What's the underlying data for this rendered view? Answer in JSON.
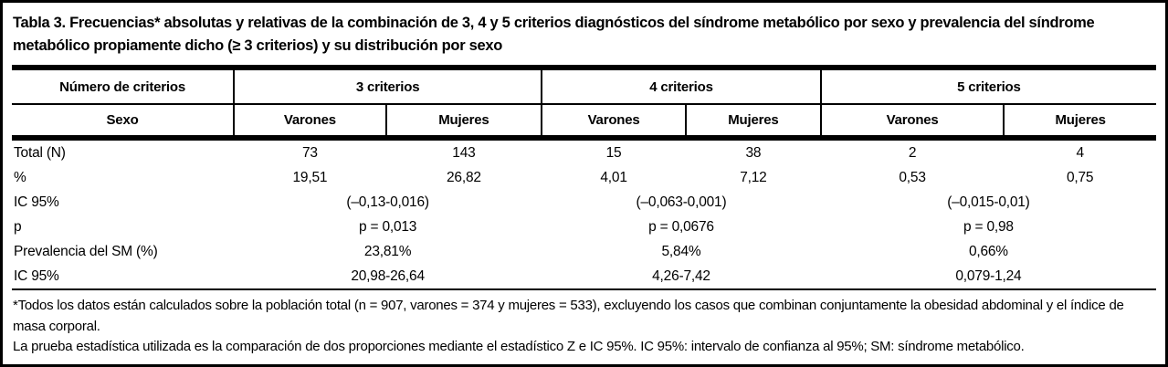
{
  "title": "Tabla 3. Frecuencias* absolutas y relativas de la combinación de 3, 4 y 5 criterios diagnósticos del síndrome metabólico por sexo y prevalencia del síndrome metabólico propiamente dicho (≥ 3 criterios) y su distribución por sexo",
  "header": {
    "row1": {
      "criteria_label": "Número de criterios",
      "group3": "3 criterios",
      "group4": "4 criterios",
      "group5": "5 criterios"
    },
    "row2": {
      "sex_label": "Sexo",
      "v3": "Varones",
      "m3": "Mujeres",
      "v4": "Varones",
      "m4": "Mujeres",
      "v5": "Varones",
      "m5": "Mujeres"
    }
  },
  "body": {
    "total": {
      "label": "Total (N)",
      "v3": "73",
      "m3": "143",
      "v4": "15",
      "m4": "38",
      "v5": "2",
      "m5": "4"
    },
    "pct": {
      "label": "%",
      "v3": "19,51",
      "m3": "26,82",
      "v4": "4,01",
      "m4": "7,12",
      "v5": "0,53",
      "m5": "0,75"
    },
    "ic1": {
      "label": "IC 95%",
      "g3": "(–0,13-0,016)",
      "g4": "(–0,063-0,001)",
      "g5": "(–0,015-0,01)"
    },
    "p": {
      "label": "p",
      "g3": "p = 0,013",
      "g4": "p = 0,0676",
      "g5": "p = 0,98"
    },
    "prev": {
      "label": "Prevalencia del SM (%)",
      "g3": "23,81%",
      "g4": "5,84%",
      "g5": "0,66%"
    },
    "ic2": {
      "label": "IC 95%",
      "g3": "20,98-26,64",
      "g4": "4,26-7,42",
      "g5": "0,079-1,24"
    }
  },
  "footnotes": {
    "line1": "*Todos los datos están calculados sobre la población total (n = 907, varones = 374 y mujeres = 533), excluyendo los casos que combinan conjuntamente la obesidad abdominal y el índice de masa corporal.",
    "line2": "La prueba estadística utilizada es la comparación de dos proporciones mediante el estadístico Z e IC 95%. IC 95%: intervalo de confianza al 95%; SM: síndrome metabólico."
  }
}
